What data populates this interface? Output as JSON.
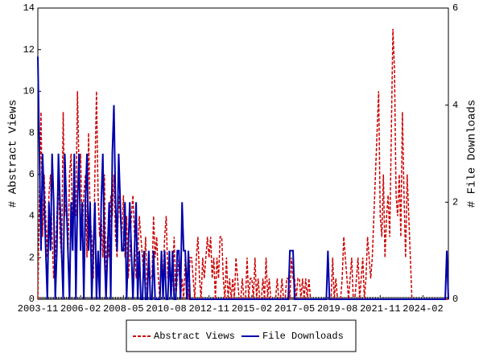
{
  "chart_data": {
    "type": "line",
    "ylabel": "# Abstract Views",
    "y2label": "# File Downloads",
    "categories": [
      "2003-11",
      null,
      null,
      null,
      null,
      null,
      null,
      null,
      null,
      null,
      null,
      null,
      null,
      null,
      null,
      null,
      null,
      null,
      null,
      null,
      null,
      null,
      null,
      null,
      null,
      null,
      null,
      "2006-02",
      null,
      null,
      null,
      null,
      null,
      null,
      null,
      null,
      null,
      null,
      null,
      null,
      null,
      null,
      null,
      null,
      null,
      null,
      null,
      null,
      null,
      null,
      null,
      null,
      null,
      null,
      "2008-05",
      null,
      null,
      null,
      null,
      null,
      null,
      null,
      null,
      null,
      null,
      null,
      null,
      null,
      null,
      null,
      null,
      null,
      null,
      null,
      null,
      null,
      null,
      null,
      null,
      null,
      null,
      "2010-08",
      null,
      null,
      null,
      null,
      null,
      null,
      null,
      null,
      null,
      null,
      null,
      null,
      null,
      null,
      null,
      null,
      null,
      null,
      null,
      null,
      null,
      null,
      null,
      null,
      null,
      null,
      "2012-11",
      null,
      null,
      null,
      null,
      null,
      null,
      null,
      null,
      null,
      null,
      null,
      null,
      null,
      null,
      null,
      null,
      null,
      null,
      null,
      null,
      null,
      null,
      null,
      null,
      null,
      null,
      "2015-02",
      null,
      null,
      null,
      null,
      null,
      null,
      null,
      null,
      null,
      null,
      null,
      null,
      null,
      null,
      null,
      null,
      null,
      null,
      null,
      null,
      null,
      null,
      null,
      null,
      null,
      null,
      "2017-05",
      null,
      null,
      null,
      null,
      null,
      null,
      null,
      null,
      null,
      null,
      null,
      null,
      null,
      null,
      null,
      null,
      null,
      null,
      null,
      null,
      null,
      null,
      null,
      null,
      null,
      null,
      "2019-08",
      null,
      null,
      null,
      null,
      null,
      null,
      null,
      null,
      null,
      null,
      null,
      null,
      null,
      null,
      null,
      null,
      null,
      null,
      null,
      null,
      null,
      null,
      null,
      null,
      null,
      null,
      "2021-11",
      null,
      null,
      null,
      null,
      null,
      null,
      null,
      null,
      null,
      null,
      null,
      null,
      null,
      null,
      null,
      null,
      null,
      null,
      null,
      null,
      null,
      null,
      null,
      null,
      null,
      null,
      "2024-02",
      null,
      null,
      null,
      null,
      null,
      null,
      null,
      null,
      null,
      null,
      null,
      null,
      null,
      null,
      null,
      null
    ],
    "series": [
      {
        "name": "Abstract Views",
        "color": "#cc0000",
        "dashed": true,
        "values": [
          0,
          5,
          9,
          3,
          6,
          4,
          2,
          5,
          6,
          3,
          1,
          2,
          4,
          6,
          3,
          2,
          9,
          4,
          5,
          2,
          6,
          7,
          3,
          5,
          4,
          10,
          6,
          7,
          3,
          5,
          6,
          2,
          8,
          4,
          3,
          1,
          6,
          10,
          5,
          3,
          4,
          2,
          6,
          1,
          3,
          2,
          5,
          4,
          6,
          3,
          2,
          5,
          4,
          3,
          5,
          2,
          4,
          1,
          2,
          4,
          5,
          3,
          1,
          2,
          4,
          3,
          2,
          1,
          3,
          0,
          2,
          1,
          1,
          4,
          2,
          3,
          1,
          0,
          2,
          1,
          3,
          4,
          1,
          2,
          0,
          1,
          3,
          0,
          1,
          2,
          0,
          1,
          0,
          2,
          1,
          0,
          2,
          2,
          1,
          0,
          2,
          3,
          1,
          0,
          2,
          1,
          2,
          3,
          2,
          3,
          1,
          2,
          0,
          2,
          1,
          3,
          3,
          1,
          0,
          2,
          0,
          1,
          0,
          1,
          0,
          2,
          1,
          0,
          0,
          1,
          0,
          0,
          2,
          0,
          1,
          1,
          0,
          2,
          0,
          1,
          0,
          0,
          1,
          0,
          2,
          0,
          1,
          0,
          0,
          0,
          0,
          1,
          0,
          0,
          1,
          0,
          0,
          1,
          1,
          0,
          2,
          1,
          1,
          0,
          1,
          1,
          0,
          1,
          0,
          1,
          0,
          1,
          0,
          0,
          0,
          0,
          0,
          0,
          0,
          0,
          0,
          0,
          0,
          0,
          0,
          0,
          2,
          0,
          1,
          0,
          0,
          0,
          1,
          3,
          2,
          1,
          0,
          1,
          2,
          0,
          0,
          1,
          2,
          0,
          1,
          2,
          0,
          1,
          3,
          2,
          1,
          2,
          4,
          6,
          8,
          10,
          4,
          3,
          6,
          2,
          4,
          5,
          3,
          8,
          13,
          11,
          5,
          4,
          6,
          3,
          9,
          5,
          2,
          6,
          4,
          2,
          0,
          0,
          0,
          0,
          0,
          0,
          0,
          0,
          0,
          0,
          0,
          0,
          0,
          0,
          0,
          0,
          0,
          0,
          0,
          0,
          0,
          0,
          0,
          0
        ]
      },
      {
        "name": "File Downloads",
        "color": "#0000aa",
        "axis": "y2",
        "values": [
          5,
          3,
          1,
          3,
          2,
          1,
          0,
          2,
          1,
          3,
          2,
          0,
          1,
          3,
          2,
          1,
          0,
          3,
          2,
          1,
          0,
          2,
          1,
          3,
          0,
          2,
          3,
          1,
          2,
          0,
          2,
          3,
          1,
          2,
          0,
          1,
          2,
          0,
          1,
          0,
          2,
          3,
          1,
          0,
          1,
          2,
          0,
          3,
          4,
          2,
          1,
          3,
          2,
          1,
          1,
          2,
          0,
          1,
          2,
          1,
          0,
          1,
          2,
          0,
          1,
          0,
          0,
          1,
          0,
          0,
          1,
          0,
          0,
          1,
          0,
          0,
          0,
          0,
          1,
          0,
          1,
          0,
          0,
          1,
          0,
          1,
          0,
          0,
          1,
          1,
          0,
          2,
          1,
          1,
          0,
          1,
          0,
          0,
          0,
          0,
          0,
          0,
          0,
          0,
          0,
          0,
          0,
          0,
          0,
          0,
          0,
          0,
          0,
          0,
          0,
          0,
          0,
          0,
          0,
          0,
          0,
          0,
          0,
          0,
          0,
          0,
          0,
          0,
          0,
          0,
          0,
          0,
          0,
          0,
          0,
          0,
          0,
          0,
          0,
          0,
          0,
          0,
          0,
          0,
          0,
          0,
          0,
          0,
          0,
          0,
          0,
          0,
          0,
          0,
          0,
          0,
          0,
          0,
          0,
          1,
          1,
          1,
          0,
          0,
          0,
          0,
          0,
          0,
          0,
          0,
          0,
          0,
          0,
          0,
          0,
          0,
          0,
          0,
          0,
          0,
          0,
          0,
          0,
          1,
          0,
          0,
          0,
          0,
          0,
          0,
          0,
          0,
          0,
          0,
          0,
          0,
          0,
          0,
          0,
          0,
          0,
          0,
          0,
          0,
          0,
          0,
          0,
          0,
          0,
          0,
          0,
          0,
          0,
          0,
          0,
          0,
          0,
          0,
          0,
          0,
          0,
          0,
          0,
          0,
          0,
          0,
          0,
          0,
          0,
          0,
          0,
          0,
          0,
          0,
          0,
          0,
          0,
          0,
          0,
          0,
          0,
          0,
          0,
          0,
          0,
          0,
          0,
          0,
          0,
          0,
          0,
          0,
          0,
          0,
          0,
          0,
          0,
          0,
          1,
          0
        ]
      }
    ],
    "ylim": [
      0,
      14
    ],
    "yticks": [
      0,
      2,
      4,
      6,
      8,
      10,
      12,
      14
    ],
    "y2lim": [
      0,
      6
    ],
    "y2ticks": [
      0,
      2,
      4,
      6
    ],
    "legend": "bottom"
  }
}
